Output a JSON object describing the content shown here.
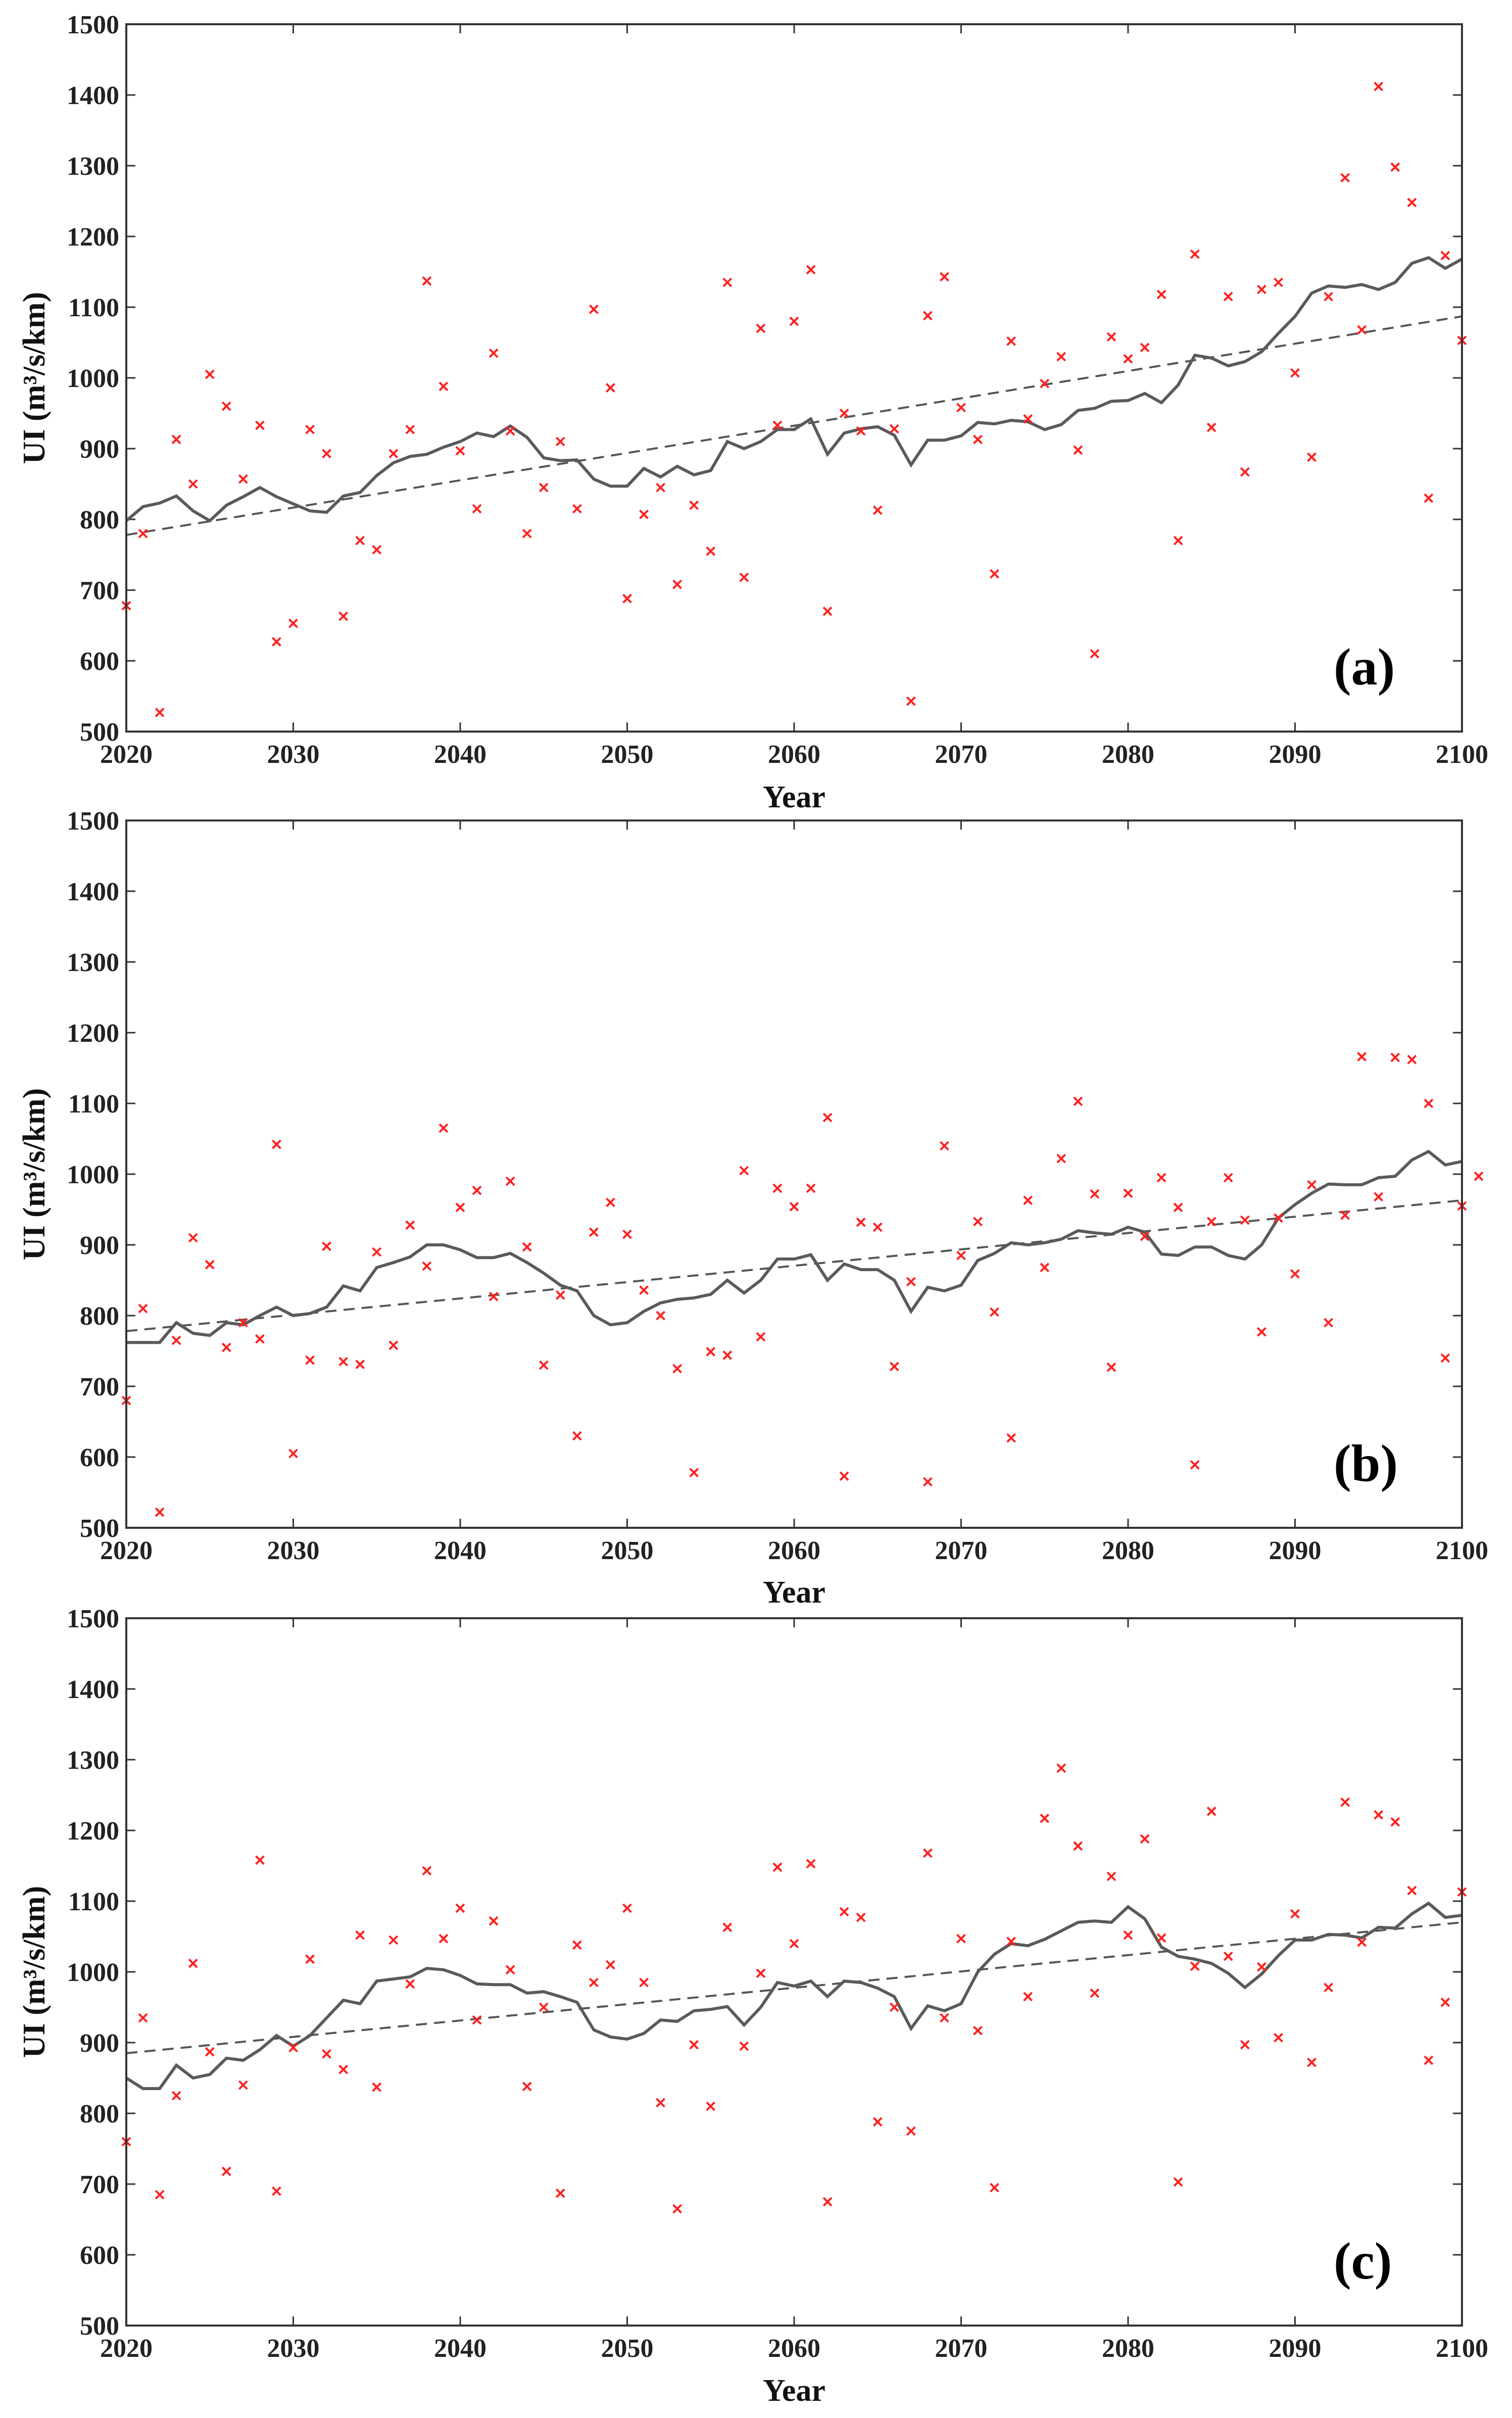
{
  "chart_data": [
    {
      "type": "scatter",
      "panel_label": "(a)",
      "xlabel": "Year",
      "ylabel": "UI (m³/s/km)",
      "xlim": [
        2020,
        2100
      ],
      "ylim": [
        500,
        1500
      ],
      "xticks": [
        2020,
        2030,
        2040,
        2050,
        2060,
        2070,
        2080,
        2090,
        2100
      ],
      "yticks": [
        500,
        600,
        700,
        800,
        900,
        1000,
        1100,
        1200,
        1300,
        1400,
        1500
      ],
      "x_start": 2020,
      "scatter": [
        678,
        780,
        527,
        913,
        850,
        1005,
        960,
        857,
        933,
        627,
        653,
        927,
        893,
        663,
        770,
        757,
        893,
        927,
        1137,
        988,
        897,
        815,
        1035,
        925,
        780,
        845,
        910,
        815,
        1097,
        986,
        688,
        807,
        845,
        708,
        820,
        755,
        1135,
        718,
        1070,
        933,
        1080,
        1153,
        670,
        950,
        925,
        813,
        928,
        543,
        1088,
        1143,
        958,
        913,
        723,
        1052,
        942,
        992,
        1030,
        898,
        610,
        1058,
        1027,
        1043,
        1118,
        770,
        1175,
        930,
        1115,
        867,
        1125,
        1135,
        1007,
        888,
        1115,
        1283,
        1068,
        1412,
        1298,
        1248,
        830,
        1173,
        1053
      ],
      "smoothed": [
        798,
        818,
        823,
        833,
        812,
        798,
        820,
        832,
        845,
        832,
        822,
        812,
        810,
        833,
        838,
        862,
        880,
        889,
        892,
        902,
        910,
        922,
        917,
        932,
        916,
        887,
        883,
        884,
        857,
        847,
        847,
        872,
        860,
        875,
        863,
        869,
        910,
        900,
        910,
        927,
        927,
        942,
        892,
        922,
        928,
        931,
        919,
        877,
        912,
        912,
        918,
        937,
        935,
        940,
        938,
        927,
        934,
        954,
        957,
        967,
        968,
        978,
        965,
        990,
        1032,
        1028,
        1017,
        1023,
        1037,
        1063,
        1087,
        1120,
        1130,
        1128,
        1132,
        1125,
        1135,
        1162,
        1170,
        1155,
        1168
      ],
      "trend": [
        2020,
        778,
        2100,
        1087
      ]
    },
    {
      "type": "scatter",
      "panel_label": "(b)",
      "xlabel": "Year",
      "ylabel": "UI (m³/s/km)",
      "xlim": [
        2020,
        2100
      ],
      "ylim": [
        500,
        1500
      ],
      "xticks": [
        2020,
        2030,
        2040,
        2050,
        2060,
        2070,
        2080,
        2090,
        2100
      ],
      "yticks": [
        500,
        600,
        700,
        800,
        900,
        1000,
        1100,
        1200,
        1300,
        1400,
        1500
      ],
      "x_start": 2020,
      "scatter": [
        680,
        810,
        522,
        765,
        910,
        872,
        755,
        790,
        767,
        1042,
        605,
        737,
        898,
        735,
        731,
        890,
        758,
        928,
        870,
        1065,
        953,
        977,
        827,
        990,
        897,
        730,
        829,
        630,
        918,
        960,
        915,
        836,
        800,
        725,
        578,
        749,
        744,
        1005,
        770,
        980,
        954,
        980,
        1080,
        573,
        932,
        925,
        728,
        848,
        565,
        1040,
        885,
        933,
        805,
        627,
        963,
        868,
        1022,
        1103,
        972,
        727,
        973,
        912,
        995,
        953,
        589,
        933,
        995,
        935,
        777,
        938,
        859,
        985,
        790,
        942,
        1166,
        968,
        1165,
        1162,
        1100,
        740,
        955,
        997
      ],
      "smoothed": [
        762,
        762,
        762,
        790,
        775,
        772,
        790,
        787,
        800,
        812,
        800,
        803,
        812,
        842,
        835,
        868,
        875,
        883,
        900,
        900,
        893,
        882,
        882,
        888,
        875,
        860,
        843,
        835,
        800,
        787,
        790,
        806,
        818,
        823,
        825,
        830,
        850,
        832,
        850,
        880,
        880,
        886,
        850,
        873,
        865,
        865,
        850,
        806,
        840,
        835,
        843,
        878,
        888,
        903,
        900,
        903,
        908,
        920,
        917,
        915,
        925,
        918,
        887,
        885,
        897,
        897,
        885,
        880,
        900,
        938,
        957,
        973,
        986,
        985,
        985,
        995,
        997,
        1020,
        1032,
        1013,
        1018
      ],
      "trend": [
        2020,
        778,
        2100,
        963
      ]
    },
    {
      "type": "scatter",
      "panel_label": "(c)",
      "xlabel": "Year",
      "ylabel": "UI (m³/s/km)",
      "xlim": [
        2020,
        2100
      ],
      "ylim": [
        500,
        1500
      ],
      "xticks": [
        2020,
        2030,
        2040,
        2050,
        2060,
        2070,
        2080,
        2090,
        2100
      ],
      "yticks": [
        500,
        600,
        700,
        800,
        900,
        1000,
        1100,
        1200,
        1300,
        1400,
        1500
      ],
      "x_start": 2020,
      "scatter": [
        760,
        935,
        685,
        825,
        1012,
        887,
        718,
        840,
        1158,
        690,
        893,
        1018,
        884,
        862,
        1052,
        837,
        1045,
        983,
        1143,
        1047,
        1090,
        932,
        1072,
        1003,
        838,
        950,
        687,
        1038,
        985,
        1010,
        1090,
        985,
        815,
        665,
        897,
        810,
        1063,
        895,
        998,
        1148,
        1040,
        1153,
        675,
        1085,
        1077,
        788,
        950,
        775,
        1168,
        935,
        1047,
        917,
        695,
        1043,
        965,
        1217,
        1288,
        1178,
        970,
        1135,
        1052,
        1188,
        1048,
        703,
        1008,
        1227,
        1022,
        897,
        1007,
        907,
        1082,
        872,
        978,
        1240,
        1042,
        1222,
        1212,
        1115,
        875,
        957,
        1113
      ],
      "smoothed": [
        850,
        835,
        835,
        868,
        850,
        855,
        878,
        875,
        890,
        910,
        895,
        910,
        935,
        960,
        955,
        987,
        990,
        993,
        1005,
        1003,
        995,
        983,
        982,
        982,
        970,
        972,
        965,
        957,
        918,
        908,
        905,
        913,
        932,
        930,
        945,
        947,
        951,
        925,
        950,
        985,
        980,
        987,
        965,
        987,
        985,
        977,
        965,
        920,
        952,
        945,
        955,
        1000,
        1025,
        1040,
        1037,
        1046,
        1058,
        1070,
        1072,
        1070,
        1092,
        1075,
        1035,
        1022,
        1018,
        1012,
        998,
        978,
        997,
        1023,
        1045,
        1045,
        1053,
        1052,
        1048,
        1063,
        1062,
        1082,
        1097,
        1077,
        1080
      ],
      "trend": [
        2020,
        885,
        2100,
        1070
      ]
    }
  ]
}
